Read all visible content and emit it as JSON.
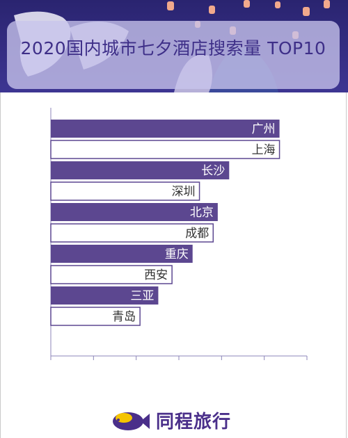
{
  "header": {
    "title": "2020国内城市七夕酒店搜索量 TOP10"
  },
  "brand": {
    "name": "同程旅行",
    "color": "#4a2f8a",
    "accent": "#f5c400"
  },
  "colors": {
    "filled": "#5c4790",
    "outline": "#5c4790",
    "axis": "#8c86b8",
    "label_on_dark": "#ffffff",
    "label_on_light": "#333333"
  },
  "chart_data": {
    "type": "bar",
    "orientation": "horizontal",
    "title": "2020国内城市七夕酒店搜索量 TOP10",
    "categories": [
      "广州",
      "上海",
      "长沙",
      "深圳",
      "北京",
      "成都",
      "重庆",
      "西安",
      "三亚",
      "青岛"
    ],
    "values": [
      100,
      100,
      78,
      65,
      73,
      71,
      62,
      53,
      47,
      39
    ],
    "xlim": [
      0,
      112
    ],
    "grid": false,
    "styles": [
      "filled",
      "outline",
      "filled",
      "outline",
      "filled",
      "outline",
      "filled",
      "outline",
      "filled",
      "outline"
    ]
  }
}
